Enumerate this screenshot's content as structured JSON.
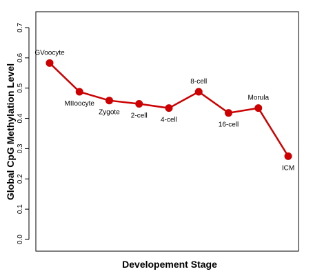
{
  "chart_data": {
    "type": "line",
    "title": "",
    "xlabel": "Developement Stage",
    "ylabel": "Global CpG Methylation Level",
    "ylim": [
      0.0,
      0.7
    ],
    "yticks": [
      "0.0",
      "0.1",
      "0.2",
      "0.3",
      "0.4",
      "0.5",
      "0.6",
      "0.7"
    ],
    "grid": false,
    "legend": "none",
    "line_color": "#cc0000",
    "points": [
      {
        "label": "GVoocyte",
        "value": 0.583,
        "label_pos": "above"
      },
      {
        "label": "MIIoocyte",
        "value": 0.488,
        "label_pos": "below"
      },
      {
        "label": "Zygote",
        "value": 0.459,
        "label_pos": "below"
      },
      {
        "label": "2-cell",
        "value": 0.448,
        "label_pos": "below"
      },
      {
        "label": "4-cell",
        "value": 0.434,
        "label_pos": "below"
      },
      {
        "label": "8-cell",
        "value": 0.488,
        "label_pos": "above"
      },
      {
        "label": "16-cell",
        "value": 0.418,
        "label_pos": "below"
      },
      {
        "label": "Morula",
        "value": 0.434,
        "label_pos": "above"
      },
      {
        "label": "ICM",
        "value": 0.275,
        "label_pos": "below"
      }
    ]
  }
}
